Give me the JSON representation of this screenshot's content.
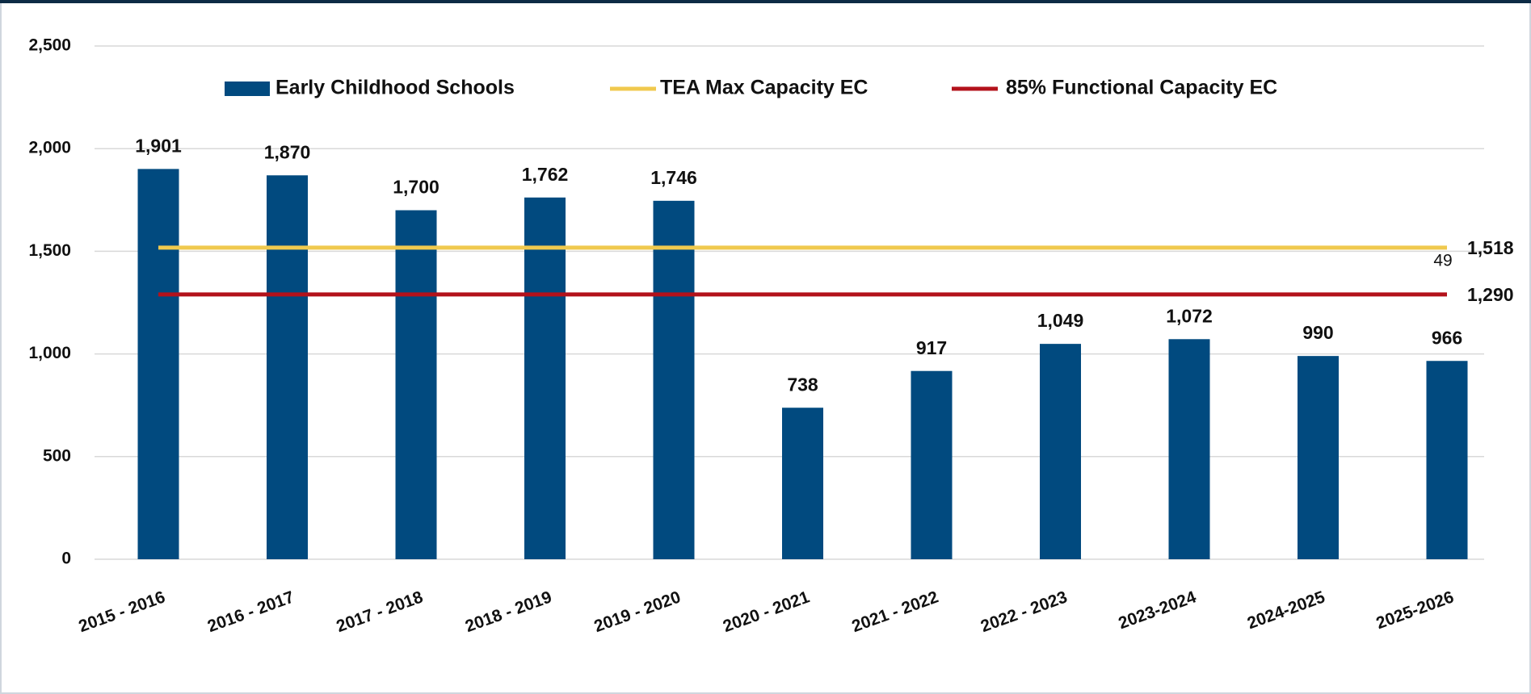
{
  "chart_data": {
    "type": "bar",
    "categories": [
      "2015 - 2016",
      "2016 - 2017",
      "2017 - 2018",
      "2018 - 2019",
      "2019 - 2020",
      "2020 - 2021",
      "2021 - 2022",
      "2022 - 2023",
      "2023-2024",
      "2024-2025",
      "2025-2026"
    ],
    "series": [
      {
        "name": "Early Childhood Schools",
        "color": "#014a7f",
        "type": "bar",
        "values": [
          1901,
          1870,
          1700,
          1762,
          1746,
          738,
          917,
          1049,
          1072,
          990,
          966
        ],
        "value_labels": [
          "1,901",
          "1,870",
          "1,700",
          "1,762",
          "1,746",
          "738",
          "917",
          "1,049",
          "1,072",
          "990",
          "966"
        ]
      },
      {
        "name": "TEA Max Capacity EC",
        "color": "#f0c94e",
        "type": "line",
        "value": 1518,
        "value_label": "1,518"
      },
      {
        "name": "85% Functional Capacity EC",
        "color": "#b3121b",
        "type": "line",
        "value": 1290,
        "value_label": "1,290"
      }
    ],
    "ylim": [
      0,
      2500
    ],
    "yticks": [
      0,
      500,
      {
        "value": 1000,
        "label": "1,000"
      },
      {
        "value": 1500,
        "label": "1,500"
      },
      {
        "value": 2000,
        "label": "2,000"
      },
      {
        "value": 2500,
        "label": "2,500"
      }
    ],
    "grid": true,
    "legend": "top",
    "annotation": "49"
  }
}
